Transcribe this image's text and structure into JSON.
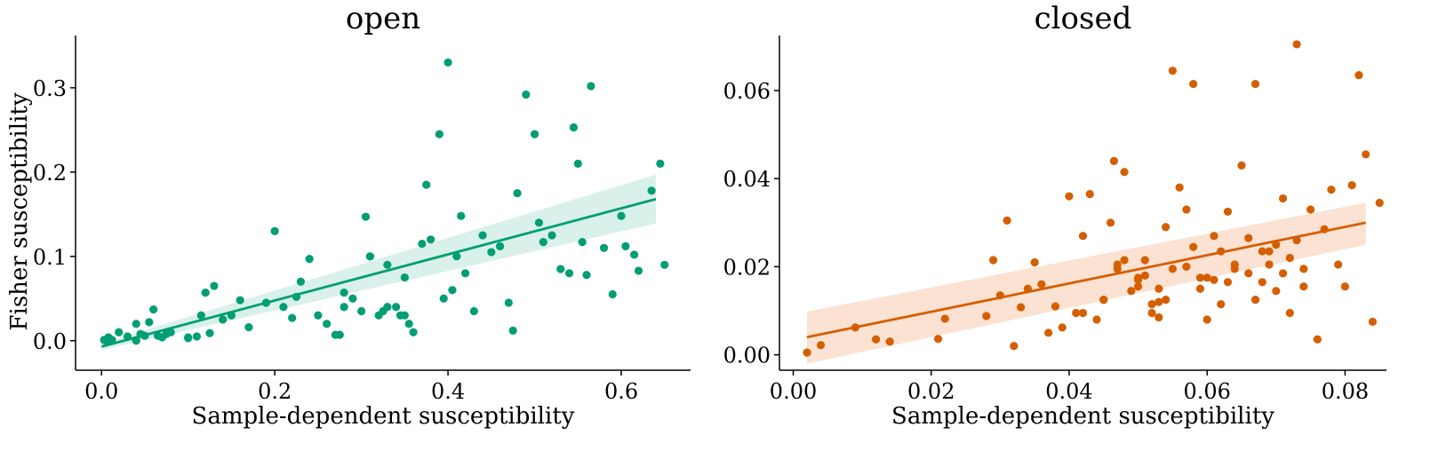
{
  "chart_data": [
    {
      "type": "scatter",
      "title": "open",
      "xlabel": "Sample-dependent susceptibility",
      "ylabel": "Fisher susceptibility",
      "xlim": [
        -0.03,
        0.68
      ],
      "ylim": [
        -0.035,
        0.362
      ],
      "xticks": [
        0.0,
        0.2,
        0.4,
        0.6
      ],
      "xtick_labels": [
        "0.0",
        "0.2",
        "0.4",
        "0.6"
      ],
      "yticks": [
        0.0,
        0.1,
        0.2,
        0.3
      ],
      "ytick_labels": [
        "0.0",
        "0.1",
        "0.2",
        "0.3"
      ],
      "color": "#009e73",
      "band_color": "#009e73",
      "grid": false,
      "fit": {
        "x0": 0.0,
        "y0": -0.007,
        "x1": 0.64,
        "y1": 0.168
      },
      "band": {
        "lower": [
          -0.011,
          0.139
        ],
        "upper": [
          -0.003,
          0.197
        ]
      },
      "points": [
        [
          0.003,
          0.001
        ],
        [
          0.005,
          0.0
        ],
        [
          0.008,
          0.004
        ],
        [
          0.012,
          0.001
        ],
        [
          0.02,
          0.01
        ],
        [
          0.03,
          0.005
        ],
        [
          0.04,
          0.02
        ],
        [
          0.045,
          0.008
        ],
        [
          0.05,
          0.006
        ],
        [
          0.055,
          0.022
        ],
        [
          0.06,
          0.037
        ],
        [
          0.065,
          0.006
        ],
        [
          0.07,
          0.004
        ],
        [
          0.075,
          0.008
        ],
        [
          0.08,
          0.01
        ],
        [
          0.1,
          0.004
        ],
        [
          0.11,
          0.005
        ],
        [
          0.115,
          0.03
        ],
        [
          0.12,
          0.057
        ],
        [
          0.125,
          0.009
        ],
        [
          0.13,
          0.065
        ],
        [
          0.14,
          0.025
        ],
        [
          0.15,
          0.03
        ],
        [
          0.16,
          0.048
        ],
        [
          0.17,
          0.016
        ],
        [
          0.19,
          0.045
        ],
        [
          0.2,
          0.13
        ],
        [
          0.21,
          0.04
        ],
        [
          0.22,
          0.027
        ],
        [
          0.225,
          0.052
        ],
        [
          0.23,
          0.07
        ],
        [
          0.24,
          0.097
        ],
        [
          0.25,
          0.03
        ],
        [
          0.26,
          0.02
        ],
        [
          0.27,
          0.007
        ],
        [
          0.275,
          0.007
        ],
        [
          0.28,
          0.057
        ],
        [
          0.29,
          0.05
        ],
        [
          0.3,
          0.035
        ],
        [
          0.305,
          0.147
        ],
        [
          0.31,
          0.1
        ],
        [
          0.32,
          0.03
        ],
        [
          0.325,
          0.035
        ],
        [
          0.33,
          0.09
        ],
        [
          0.34,
          0.04
        ],
        [
          0.345,
          0.03
        ],
        [
          0.35,
          0.075
        ],
        [
          0.355,
          0.02
        ],
        [
          0.36,
          0.01
        ],
        [
          0.37,
          0.115
        ],
        [
          0.375,
          0.185
        ],
        [
          0.38,
          0.12
        ],
        [
          0.39,
          0.245
        ],
        [
          0.4,
          0.33
        ],
        [
          0.395,
          0.05
        ],
        [
          0.405,
          0.06
        ],
        [
          0.41,
          0.1
        ],
        [
          0.415,
          0.148
        ],
        [
          0.42,
          0.08
        ],
        [
          0.43,
          0.035
        ],
        [
          0.44,
          0.125
        ],
        [
          0.45,
          0.105
        ],
        [
          0.46,
          0.112
        ],
        [
          0.47,
          0.045
        ],
        [
          0.475,
          0.012
        ],
        [
          0.48,
          0.175
        ],
        [
          0.49,
          0.292
        ],
        [
          0.5,
          0.245
        ],
        [
          0.505,
          0.14
        ],
        [
          0.51,
          0.117
        ],
        [
          0.52,
          0.125
        ],
        [
          0.53,
          0.085
        ],
        [
          0.54,
          0.08
        ],
        [
          0.545,
          0.253
        ],
        [
          0.55,
          0.21
        ],
        [
          0.555,
          0.117
        ],
        [
          0.56,
          0.078
        ],
        [
          0.565,
          0.302
        ],
        [
          0.58,
          0.11
        ],
        [
          0.59,
          0.055
        ],
        [
          0.6,
          0.148
        ],
        [
          0.605,
          0.112
        ],
        [
          0.615,
          0.102
        ],
        [
          0.62,
          0.083
        ],
        [
          0.635,
          0.178
        ],
        [
          0.645,
          0.21
        ],
        [
          0.65,
          0.09
        ],
        [
          0.04,
          0.0
        ],
        [
          0.1,
          0.003
        ],
        [
          0.28,
          0.04
        ],
        [
          0.31,
          0.1
        ],
        [
          0.33,
          0.04
        ],
        [
          0.35,
          0.03
        ]
      ]
    },
    {
      "type": "scatter",
      "title": "closed",
      "xlabel": "Sample-dependent susceptibility",
      "ylabel": "",
      "xlim": [
        -0.002,
        0.086
      ],
      "ylim": [
        -0.0035,
        0.0725
      ],
      "xticks": [
        0.0,
        0.02,
        0.04,
        0.06,
        0.08
      ],
      "xtick_labels": [
        "0.00",
        "0.02",
        "0.04",
        "0.06",
        "0.08"
      ],
      "yticks": [
        0.0,
        0.02,
        0.04,
        0.06
      ],
      "ytick_labels": [
        "0.00",
        "0.02",
        "0.04",
        "0.06"
      ],
      "color": "#d55e00",
      "band_color": "#f6b78f",
      "grid": false,
      "fit": {
        "x0": 0.002,
        "y0": 0.004,
        "x1": 0.083,
        "y1": 0.03
      },
      "band": {
        "lower": [
          -0.002,
          0.025
        ],
        "upper": [
          0.0098,
          0.0345
        ]
      },
      "points": [
        [
          0.002,
          0.0005
        ],
        [
          0.004,
          0.0022
        ],
        [
          0.009,
          0.0062
        ],
        [
          0.012,
          0.0035
        ],
        [
          0.014,
          0.003
        ],
        [
          0.021,
          0.0036
        ],
        [
          0.022,
          0.0082
        ],
        [
          0.028,
          0.0088
        ],
        [
          0.029,
          0.0215
        ],
        [
          0.03,
          0.0135
        ],
        [
          0.031,
          0.0305
        ],
        [
          0.032,
          0.002
        ],
        [
          0.033,
          0.0108
        ],
        [
          0.034,
          0.015
        ],
        [
          0.035,
          0.021
        ],
        [
          0.036,
          0.016
        ],
        [
          0.037,
          0.005
        ],
        [
          0.038,
          0.011
        ],
        [
          0.039,
          0.0062
        ],
        [
          0.04,
          0.036
        ],
        [
          0.041,
          0.0095
        ],
        [
          0.042,
          0.027
        ],
        [
          0.043,
          0.0365
        ],
        [
          0.044,
          0.008
        ],
        [
          0.045,
          0.0125
        ],
        [
          0.046,
          0.03
        ],
        [
          0.0465,
          0.044
        ],
        [
          0.047,
          0.0205
        ],
        [
          0.048,
          0.0415
        ],
        [
          0.049,
          0.0145
        ],
        [
          0.05,
          0.017
        ],
        [
          0.051,
          0.018
        ],
        [
          0.052,
          0.0095
        ],
        [
          0.053,
          0.012
        ],
        [
          0.054,
          0.029
        ],
        [
          0.055,
          0.0645
        ],
        [
          0.056,
          0.038
        ],
        [
          0.057,
          0.02
        ],
        [
          0.058,
          0.0615
        ],
        [
          0.059,
          0.015
        ],
        [
          0.06,
          0.008
        ],
        [
          0.061,
          0.017
        ],
        [
          0.062,
          0.0235
        ],
        [
          0.063,
          0.0325
        ],
        [
          0.064,
          0.0205
        ],
        [
          0.065,
          0.043
        ],
        [
          0.066,
          0.0185
        ],
        [
          0.067,
          0.0615
        ],
        [
          0.068,
          0.0165
        ],
        [
          0.069,
          0.0205
        ],
        [
          0.07,
          0.025
        ],
        [
          0.071,
          0.0185
        ],
        [
          0.072,
          0.022
        ],
        [
          0.073,
          0.0705
        ],
        [
          0.074,
          0.0195
        ],
        [
          0.075,
          0.033
        ],
        [
          0.076,
          0.0035
        ],
        [
          0.077,
          0.0285
        ],
        [
          0.078,
          0.0375
        ],
        [
          0.079,
          0.0205
        ],
        [
          0.08,
          0.0155
        ],
        [
          0.081,
          0.0385
        ],
        [
          0.082,
          0.0635
        ],
        [
          0.083,
          0.0455
        ],
        [
          0.084,
          0.0075
        ],
        [
          0.085,
          0.0345
        ],
        [
          0.047,
          0.0195
        ],
        [
          0.05,
          0.0155
        ],
        [
          0.052,
          0.0115
        ],
        [
          0.053,
          0.0085
        ],
        [
          0.055,
          0.0195
        ],
        [
          0.058,
          0.0245
        ],
        [
          0.06,
          0.0175
        ],
        [
          0.062,
          0.0115
        ],
        [
          0.064,
          0.0195
        ],
        [
          0.066,
          0.0265
        ],
        [
          0.068,
          0.0235
        ],
        [
          0.07,
          0.0145
        ],
        [
          0.072,
          0.0095
        ],
        [
          0.074,
          0.0155
        ],
        [
          0.061,
          0.027
        ],
        [
          0.057,
          0.033
        ],
        [
          0.059,
          0.0175
        ],
        [
          0.063,
          0.0165
        ],
        [
          0.067,
          0.0125
        ],
        [
          0.069,
          0.0235
        ],
        [
          0.071,
          0.0355
        ],
        [
          0.073,
          0.026
        ],
        [
          0.048,
          0.0215
        ],
        [
          0.05,
          0.0175
        ],
        [
          0.042,
          0.0095
        ],
        [
          0.045,
          0.0125
        ],
        [
          0.051,
          0.0215
        ],
        [
          0.053,
          0.015
        ],
        [
          0.054,
          0.0125
        ]
      ]
    }
  ]
}
